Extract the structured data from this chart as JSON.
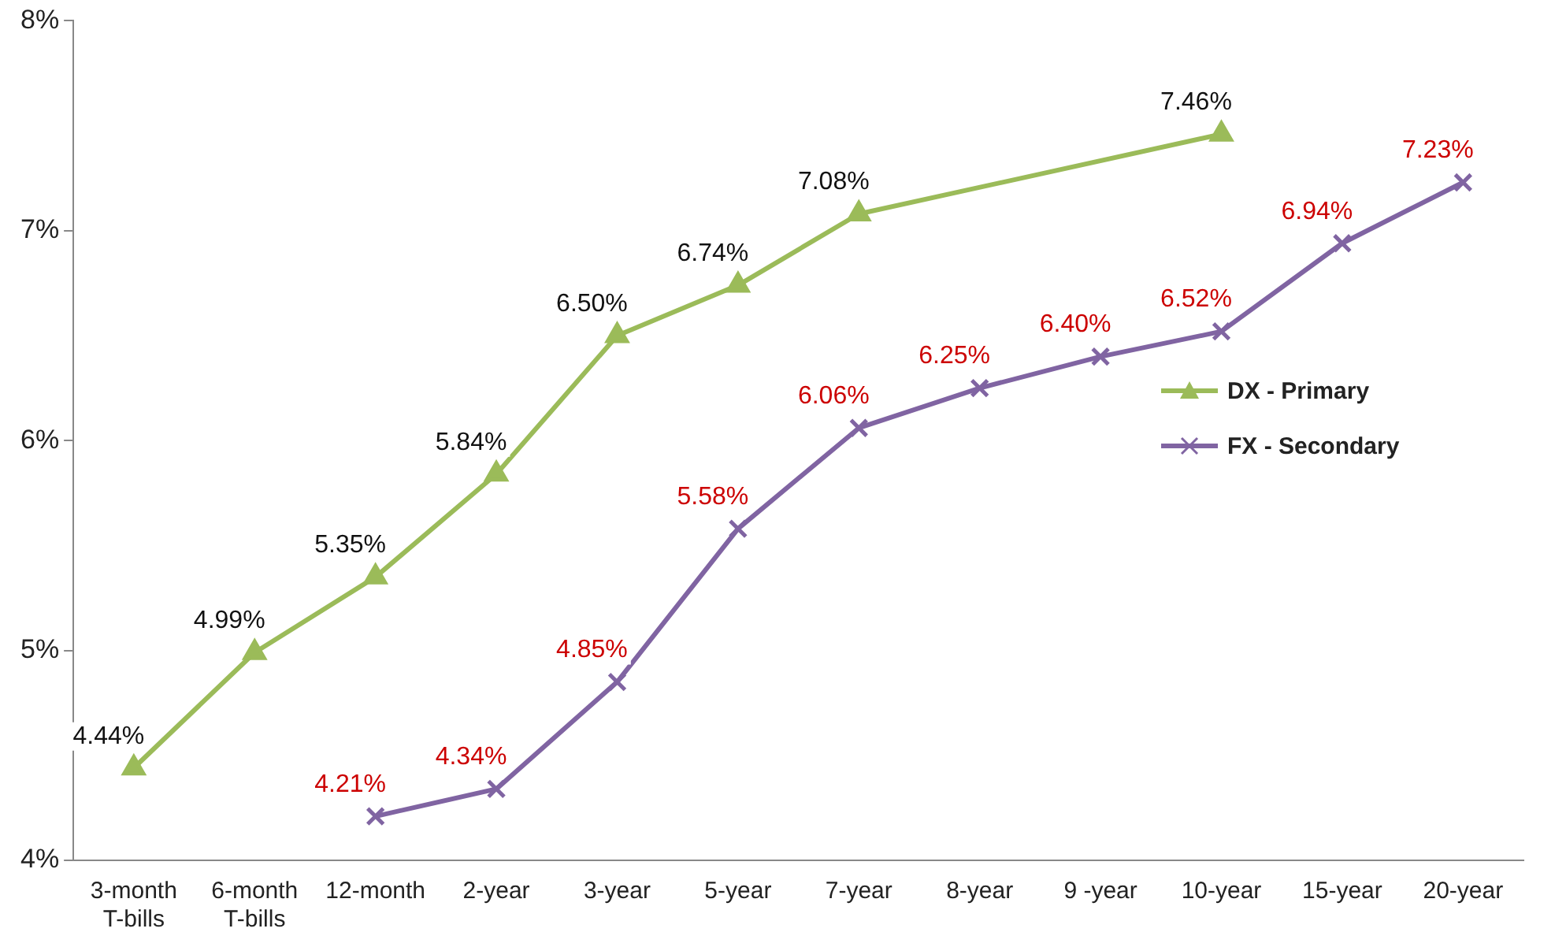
{
  "chart_data": {
    "type": "line",
    "categories": [
      "3-month\nT-bills",
      "6-month\nT-bills",
      "12-month",
      "2-year",
      "3-year",
      "5-year",
      "7-year",
      "8-year",
      "9 -year",
      "10-year",
      "15-year",
      "20-year"
    ],
    "series": [
      {
        "name": "DX - Primary",
        "color": "#9bbb59",
        "marker": "triangle",
        "values": [
          4.44,
          4.99,
          5.35,
          5.84,
          6.5,
          6.74,
          7.08,
          null,
          null,
          7.46,
          null,
          null
        ]
      },
      {
        "name": "FX - Secondary",
        "color": "#8064a2",
        "marker": "cross",
        "values": [
          null,
          null,
          4.21,
          4.34,
          4.85,
          5.58,
          6.06,
          6.25,
          6.4,
          6.52,
          6.94,
          7.23
        ]
      }
    ],
    "ylim": [
      4,
      8
    ],
    "yticks": [
      {
        "value": 4,
        "label": "4%"
      },
      {
        "value": 5,
        "label": "5%"
      },
      {
        "value": 6,
        "label": "6%"
      },
      {
        "value": 7,
        "label": "7%"
      },
      {
        "value": 8,
        "label": "8%"
      }
    ],
    "value_labels": [
      [
        "4.44%",
        "4.99%",
        "5.35%",
        "5.84%",
        "6.50%",
        "6.74%",
        "7.08%",
        null,
        null,
        "7.46%",
        null,
        null
      ],
      [
        null,
        null,
        "4.21%",
        "4.34%",
        "4.85%",
        "5.58%",
        "6.06%",
        "6.25%",
        "6.40%",
        "6.52%",
        "6.94%",
        "7.23%"
      ]
    ],
    "grid": false,
    "legend": "right"
  }
}
